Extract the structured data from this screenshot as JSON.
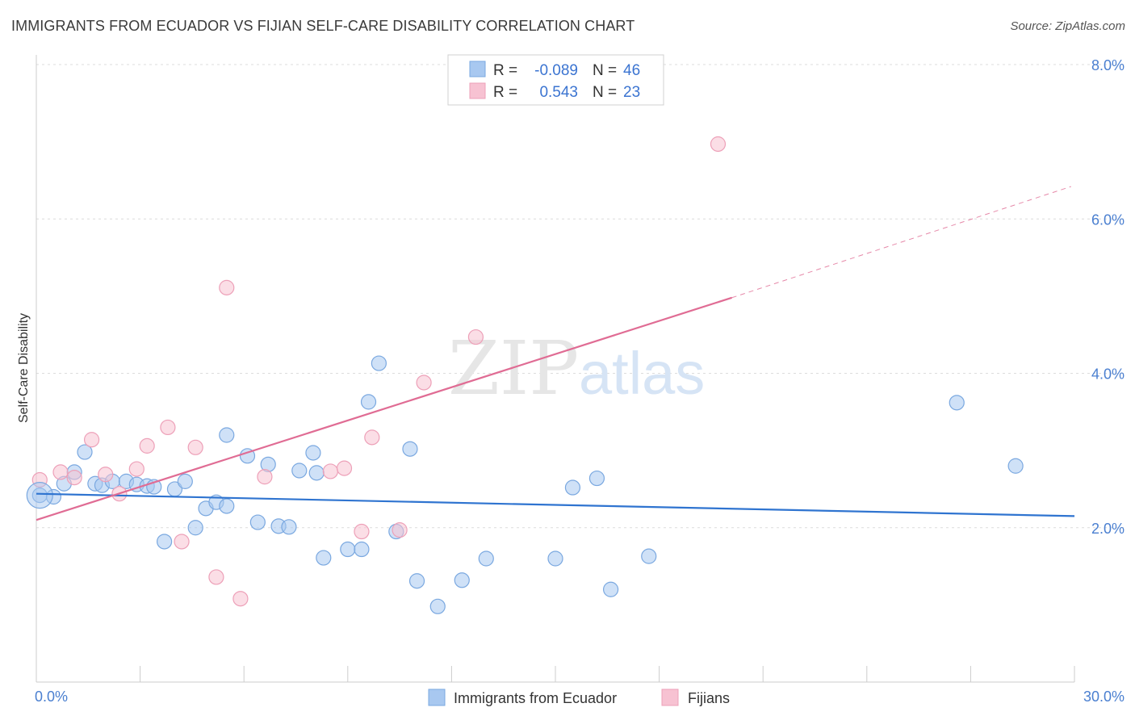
{
  "header": {
    "title": "IMMIGRANTS FROM ECUADOR VS FIJIAN SELF-CARE DISABILITY CORRELATION CHART",
    "source": "Source: ZipAtlas.com"
  },
  "watermark": {
    "zip": "ZIP",
    "atlas": "atlas"
  },
  "chart_data": {
    "type": "scatter",
    "title": "IMMIGRANTS FROM ECUADOR VS FIJIAN SELF-CARE DISABILITY CORRELATION CHART",
    "ylabel": "Self-Care Disability",
    "xlim": [
      0,
      30
    ],
    "ylim": [
      0,
      8
    ],
    "x_tick_labels": [
      "0.0%",
      "30.0%"
    ],
    "y_ticks": [
      2,
      4,
      6,
      8
    ],
    "y_tick_labels": [
      "2.0%",
      "4.0%",
      "6.0%",
      "8.0%"
    ],
    "grid": true,
    "legend": {
      "placement": "top-center",
      "rows": [
        {
          "r_label": "R =",
          "r_value": "-0.089",
          "n_label": "N =",
          "n_value": "46"
        },
        {
          "r_label": "R =",
          "r_value": "0.543",
          "n_label": "N =",
          "n_value": "23"
        }
      ]
    },
    "series": [
      {
        "name": "Immigrants from Ecuador",
        "color": "#a8c8f0",
        "stroke": "#7aa8e0",
        "line_color": "#2f74d0",
        "trend": {
          "x": [
            0,
            30
          ],
          "y": [
            2.44,
            2.15
          ]
        },
        "points": [
          [
            0.1,
            2.42
          ],
          [
            0.5,
            2.4
          ],
          [
            1.1,
            2.72
          ],
          [
            0.8,
            2.57
          ],
          [
            1.4,
            2.98
          ],
          [
            1.7,
            2.57
          ],
          [
            1.9,
            2.55
          ],
          [
            2.2,
            2.6
          ],
          [
            2.6,
            2.6
          ],
          [
            2.9,
            2.56
          ],
          [
            3.2,
            2.54
          ],
          [
            3.4,
            2.53
          ],
          [
            3.7,
            1.82
          ],
          [
            4.0,
            2.5
          ],
          [
            4.3,
            2.6
          ],
          [
            4.6,
            2.0
          ],
          [
            4.9,
            2.25
          ],
          [
            5.2,
            2.33
          ],
          [
            5.5,
            2.28
          ],
          [
            5.5,
            3.2
          ],
          [
            6.1,
            2.93
          ],
          [
            6.4,
            2.07
          ],
          [
            6.7,
            2.82
          ],
          [
            7.0,
            2.02
          ],
          [
            7.3,
            2.01
          ],
          [
            7.6,
            2.74
          ],
          [
            8.0,
            2.97
          ],
          [
            8.1,
            2.71
          ],
          [
            8.3,
            1.61
          ],
          [
            9.0,
            1.72
          ],
          [
            9.4,
            1.72
          ],
          [
            9.6,
            3.63
          ],
          [
            9.9,
            4.13
          ],
          [
            10.4,
            1.95
          ],
          [
            10.8,
            3.02
          ],
          [
            11.0,
            1.31
          ],
          [
            11.6,
            0.98
          ],
          [
            12.3,
            1.32
          ],
          [
            13.0,
            1.6
          ],
          [
            15.0,
            1.6
          ],
          [
            15.5,
            2.52
          ],
          [
            16.2,
            2.64
          ],
          [
            16.6,
            1.2
          ],
          [
            17.7,
            1.63
          ],
          [
            26.6,
            3.62
          ],
          [
            28.3,
            2.8
          ]
        ]
      },
      {
        "name": "Fijians",
        "color": "#f7c2d2",
        "stroke": "#eda0b8",
        "line_color": "#e06c94",
        "trend": {
          "x": [
            0,
            20.1
          ],
          "y": [
            2.1,
            4.98
          ]
        },
        "trend_dashed": {
          "x": [
            20.1,
            29.9
          ],
          "y": [
            4.98,
            6.42
          ]
        },
        "points": [
          [
            0.1,
            2.62
          ],
          [
            0.7,
            2.72
          ],
          [
            1.1,
            2.65
          ],
          [
            1.6,
            3.14
          ],
          [
            2.0,
            2.69
          ],
          [
            2.4,
            2.44
          ],
          [
            2.9,
            2.76
          ],
          [
            3.2,
            3.06
          ],
          [
            3.8,
            3.3
          ],
          [
            4.2,
            1.82
          ],
          [
            4.6,
            3.04
          ],
          [
            5.2,
            1.36
          ],
          [
            5.5,
            5.11
          ],
          [
            5.9,
            1.08
          ],
          [
            6.6,
            2.66
          ],
          [
            8.5,
            2.73
          ],
          [
            8.9,
            2.77
          ],
          [
            9.4,
            1.95
          ],
          [
            9.7,
            3.17
          ],
          [
            10.5,
            1.97
          ],
          [
            11.2,
            3.88
          ],
          [
            12.7,
            4.47
          ],
          [
            19.7,
            6.97
          ]
        ]
      }
    ]
  }
}
